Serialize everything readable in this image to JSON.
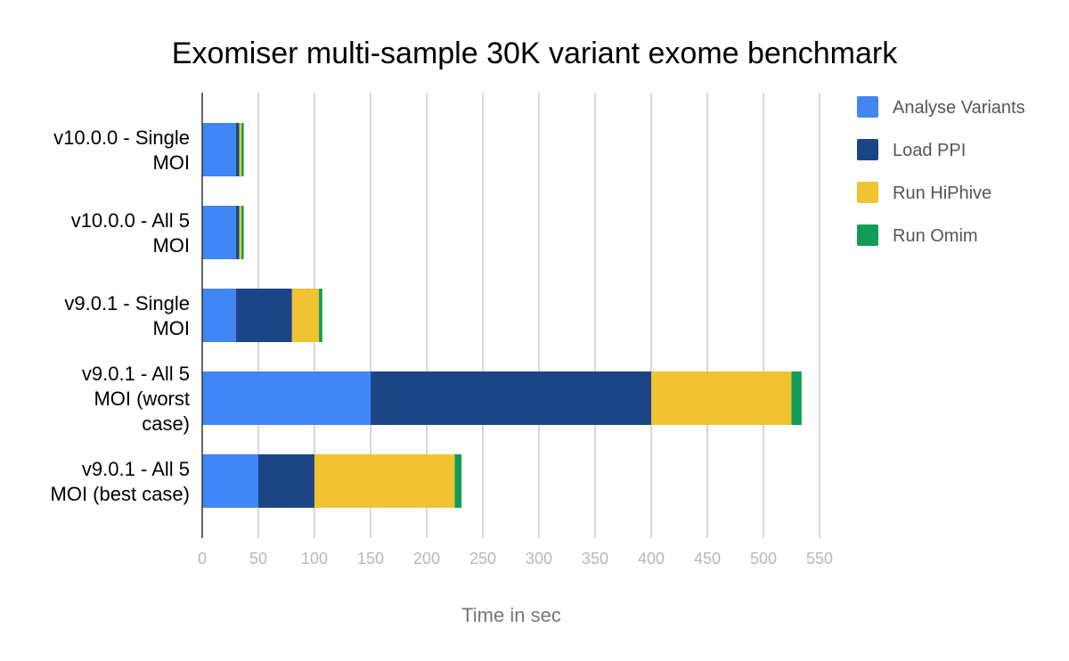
{
  "chart_data": {
    "type": "bar",
    "orientation": "horizontal",
    "stacked": true,
    "title": "Exomiser multi-sample 30K variant exome benchmark",
    "xlabel": "Time in sec",
    "ylabel": "",
    "xlim": [
      0,
      550
    ],
    "x_ticks": [
      0,
      50,
      100,
      150,
      200,
      250,
      300,
      350,
      400,
      450,
      500,
      550
    ],
    "grid": true,
    "legend_position": "right",
    "categories": [
      [
        "v10.0.0 - Single",
        "MOI"
      ],
      [
        "v10.0.0 - All 5",
        "MOI"
      ],
      [
        "v9.0.1 - Single",
        "MOI"
      ],
      [
        "v9.0.1 - All 5",
        "MOI (worst",
        "case)"
      ],
      [
        "v9.0.1 - All 5",
        "MOI (best case)"
      ]
    ],
    "series": [
      {
        "name": "Analyse Variants",
        "color": "#4285f4",
        "values": [
          30,
          30,
          30,
          150,
          50
        ]
      },
      {
        "name": "Load PPI",
        "color": "#1c4587",
        "values": [
          3,
          3,
          50,
          250,
          50
        ]
      },
      {
        "name": "Run HiPhive",
        "color": "#f1c232",
        "values": [
          2,
          2,
          24,
          125,
          125
        ]
      },
      {
        "name": "Run Omim",
        "color": "#0f9d58",
        "values": [
          2,
          2,
          3,
          9,
          6
        ]
      }
    ]
  }
}
